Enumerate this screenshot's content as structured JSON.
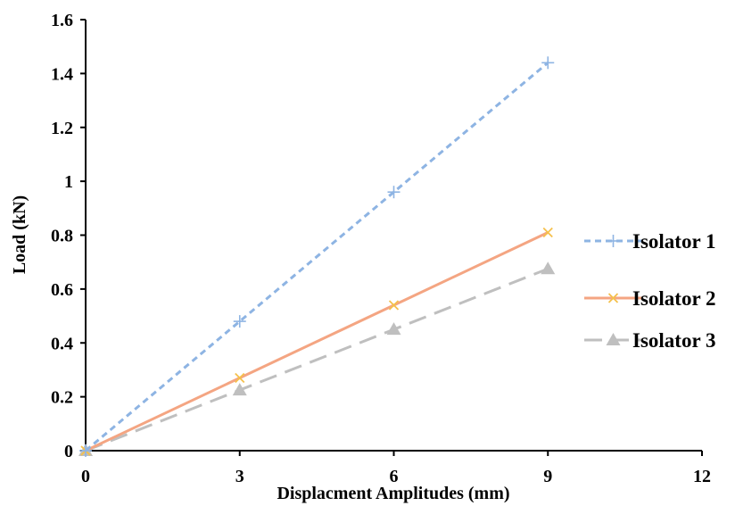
{
  "chart_data": {
    "type": "line",
    "title": "",
    "xlabel": "Displacment Amplitudes (mm)",
    "ylabel": "Load (kN)",
    "xlim": [
      0,
      12
    ],
    "ylim": [
      0,
      1.6
    ],
    "x_ticks": [
      "0",
      "3",
      "6",
      "9",
      "12"
    ],
    "y_ticks": [
      "0",
      "0.2",
      "0.4",
      "0.6",
      "0.8",
      "1",
      "1.2",
      "1.4",
      "1.6"
    ],
    "grid": false,
    "legend_position": "right",
    "series": [
      {
        "name": "Isolator 1",
        "color": "#8eb4e3",
        "line_style": "dashed",
        "marker": "plus",
        "x": [
          0,
          3,
          6,
          9
        ],
        "y": [
          0,
          0.48,
          0.96,
          1.44
        ]
      },
      {
        "name": "Isolator 2",
        "color": "#f4a582",
        "line_style": "solid",
        "marker": "cross",
        "x": [
          0,
          3,
          6,
          9
        ],
        "y": [
          0,
          0.27,
          0.54,
          0.81
        ]
      },
      {
        "name": "Isolator 3",
        "color": "#bfbfbf",
        "line_style": "long-dashed",
        "marker": "triangle",
        "x": [
          0,
          3,
          6,
          9
        ],
        "y": [
          0,
          0.225,
          0.45,
          0.675
        ]
      }
    ]
  }
}
